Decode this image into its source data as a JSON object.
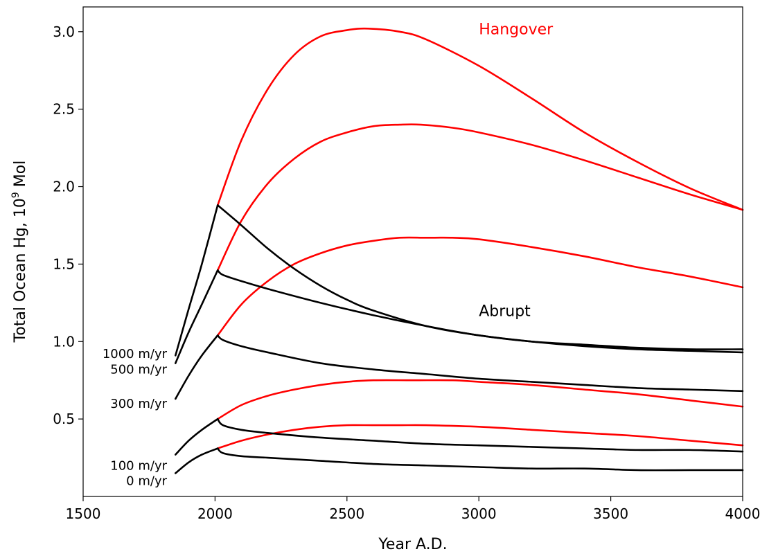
{
  "chart_data": {
    "type": "line",
    "xlabel": "Year A.D.",
    "ylabel_main": "Total Ocean Hg, 10",
    "ylabel_sup": "9",
    "ylabel_tail": " Mol",
    "xlim": [
      1500,
      4000
    ],
    "ylim": [
      0,
      3.16
    ],
    "x_ticks": [
      1500,
      2000,
      2500,
      3000,
      3500,
      4000
    ],
    "x_tick_labels": [
      "1500",
      "2000",
      "2500",
      "3000",
      "3500",
      "4000"
    ],
    "y_ticks": [
      0.5,
      1.0,
      1.5,
      2.0,
      2.5,
      3.0
    ],
    "y_tick_labels": [
      "0.5",
      "1.0",
      "1.5",
      "2.0",
      "2.5",
      "3.0"
    ],
    "grid": false,
    "colors": {
      "hangover": "#ff0000",
      "abrupt": "#000000",
      "axis": "#000000"
    },
    "annotations": [
      {
        "text": "Hangover",
        "x": 3000,
        "y": 3.02,
        "color": "#ff0000"
      },
      {
        "text": "Abrupt",
        "x": 3000,
        "y": 1.2,
        "color": "#000000"
      }
    ],
    "series": [
      {
        "name": "1000 m/yr",
        "label_y": 0.92,
        "rise": {
          "x": [
            1850,
            1900,
            1950,
            2010
          ],
          "y": [
            0.91,
            1.21,
            1.5,
            1.88
          ]
        },
        "hangover": {
          "x": [
            2010,
            2100,
            2200,
            2300,
            2400,
            2500,
            2580,
            2700,
            2800,
            3000,
            3200,
            3400,
            3600,
            3800,
            4000
          ],
          "y": [
            1.88,
            2.3,
            2.63,
            2.85,
            2.97,
            3.01,
            3.02,
            3.0,
            2.95,
            2.78,
            2.57,
            2.35,
            2.16,
            1.99,
            1.85
          ]
        },
        "abrupt": {
          "x": [
            2010,
            2100,
            2200,
            2300,
            2400,
            2500,
            2600,
            2800,
            3000,
            3200,
            3400,
            3600,
            3800,
            4000
          ],
          "y": [
            1.88,
            1.75,
            1.6,
            1.47,
            1.36,
            1.27,
            1.2,
            1.1,
            1.04,
            1.0,
            0.98,
            0.96,
            0.95,
            0.95
          ]
        }
      },
      {
        "name": "500 m/yr",
        "label_y": 0.82,
        "rise": {
          "x": [
            1850,
            1900,
            1950,
            2010
          ],
          "y": [
            0.86,
            1.06,
            1.24,
            1.46
          ]
        },
        "hangover": {
          "x": [
            2010,
            2100,
            2200,
            2300,
            2400,
            2500,
            2600,
            2700,
            2780,
            2900,
            3000,
            3200,
            3400,
            3600,
            3800,
            4000
          ],
          "y": [
            1.46,
            1.78,
            2.02,
            2.18,
            2.29,
            2.35,
            2.39,
            2.4,
            2.4,
            2.38,
            2.35,
            2.27,
            2.17,
            2.06,
            1.95,
            1.85
          ]
        },
        "abrupt": {
          "x": [
            2010,
            2030,
            2100,
            2200,
            2400,
            2600,
            2800,
            3000,
            3200,
            3400,
            3600,
            3800,
            4000
          ],
          "y": [
            1.46,
            1.43,
            1.39,
            1.34,
            1.25,
            1.17,
            1.1,
            1.04,
            1.0,
            0.97,
            0.95,
            0.94,
            0.93
          ]
        }
      },
      {
        "name": "300 m/yr",
        "label_y": 0.6,
        "rise": {
          "x": [
            1850,
            1900,
            1950,
            2010
          ],
          "y": [
            0.63,
            0.78,
            0.91,
            1.04
          ]
        },
        "hangover": {
          "x": [
            2010,
            2100,
            2200,
            2300,
            2400,
            2500,
            2600,
            2700,
            2800,
            2900,
            3000,
            3200,
            3400,
            3600,
            3800,
            4000
          ],
          "y": [
            1.04,
            1.24,
            1.39,
            1.5,
            1.57,
            1.62,
            1.65,
            1.67,
            1.67,
            1.67,
            1.66,
            1.61,
            1.55,
            1.48,
            1.42,
            1.35
          ]
        },
        "abrupt": {
          "x": [
            2010,
            2030,
            2100,
            2200,
            2400,
            2600,
            2800,
            3000,
            3200,
            3400,
            3600,
            3800,
            4000
          ],
          "y": [
            1.04,
            1.01,
            0.97,
            0.93,
            0.86,
            0.82,
            0.79,
            0.76,
            0.74,
            0.72,
            0.7,
            0.69,
            0.68
          ]
        }
      },
      {
        "name": "100 m/yr",
        "label_y": 0.2,
        "rise": {
          "x": [
            1850,
            1900,
            1950,
            2010
          ],
          "y": [
            0.27,
            0.36,
            0.43,
            0.5
          ]
        },
        "hangover": {
          "x": [
            2010,
            2100,
            2200,
            2300,
            2400,
            2500,
            2600,
            2750,
            2900,
            3000,
            3200,
            3400,
            3600,
            3800,
            4000
          ],
          "y": [
            0.5,
            0.59,
            0.65,
            0.69,
            0.72,
            0.74,
            0.75,
            0.75,
            0.75,
            0.74,
            0.72,
            0.69,
            0.66,
            0.62,
            0.58
          ]
        },
        "abrupt": {
          "x": [
            2010,
            2030,
            2100,
            2200,
            2400,
            2600,
            2800,
            3000,
            3200,
            3400,
            3600,
            3800,
            4000
          ],
          "y": [
            0.5,
            0.46,
            0.43,
            0.41,
            0.38,
            0.36,
            0.34,
            0.33,
            0.32,
            0.31,
            0.3,
            0.3,
            0.29
          ]
        }
      },
      {
        "name": "0 m/yr",
        "label_y": 0.1,
        "rise": {
          "x": [
            1850,
            1900,
            1950,
            2010
          ],
          "y": [
            0.15,
            0.22,
            0.27,
            0.31
          ]
        },
        "hangover": {
          "x": [
            2010,
            2100,
            2200,
            2300,
            2400,
            2500,
            2600,
            2700,
            2800,
            3000,
            3200,
            3400,
            3600,
            3800,
            4000
          ],
          "y": [
            0.31,
            0.36,
            0.4,
            0.43,
            0.45,
            0.46,
            0.46,
            0.46,
            0.46,
            0.45,
            0.43,
            0.41,
            0.39,
            0.36,
            0.33
          ]
        },
        "abrupt": {
          "x": [
            2010,
            2030,
            2100,
            2200,
            2400,
            2600,
            2800,
            3000,
            3200,
            3400,
            3600,
            3800,
            4000
          ],
          "y": [
            0.31,
            0.28,
            0.26,
            0.25,
            0.23,
            0.21,
            0.2,
            0.19,
            0.18,
            0.18,
            0.17,
            0.17,
            0.17
          ]
        }
      }
    ]
  }
}
